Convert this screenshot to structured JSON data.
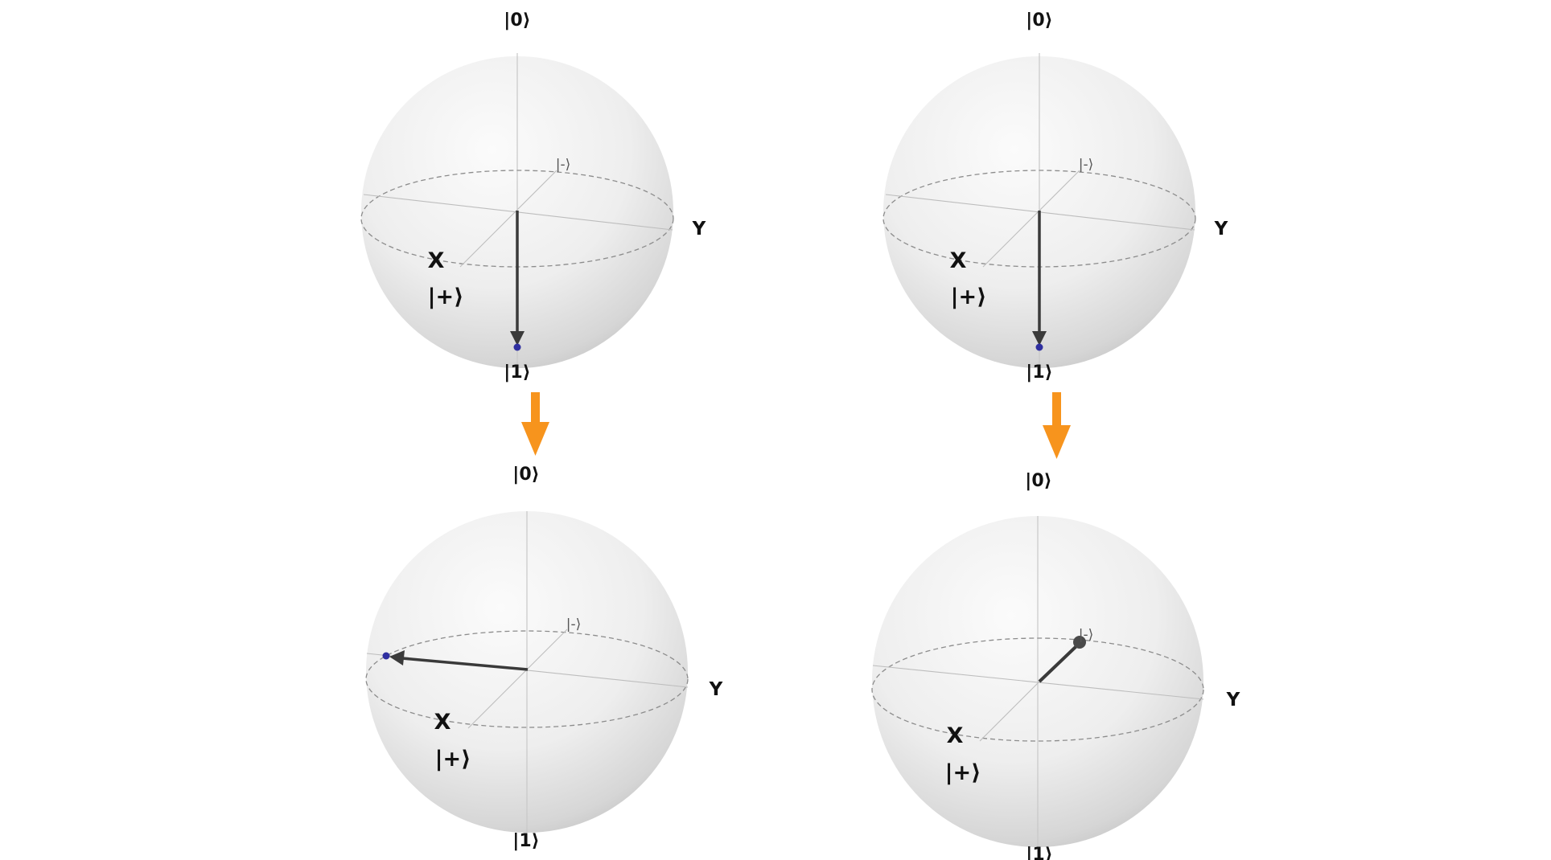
{
  "spheres": [
    {
      "id": "top-left",
      "labels": {
        "zero": "|0⟩",
        "one": "|1⟩",
        "x": "X",
        "y": "Y",
        "plus": "|+⟩",
        "minus": "|-⟩"
      },
      "state_vector": {
        "direction": "|1⟩",
        "point_color": "#2f2fa0",
        "arrow_color": "#3a3a3a"
      }
    },
    {
      "id": "top-right",
      "labels": {
        "zero": "|0⟩",
        "one": "|1⟩",
        "x": "X",
        "y": "Y",
        "plus": "|+⟩",
        "minus": "|-⟩"
      },
      "state_vector": {
        "direction": "|1⟩",
        "point_color": "#2f2fa0",
        "arrow_color": "#3a3a3a"
      }
    },
    {
      "id": "bottom-left",
      "labels": {
        "zero": "|0⟩",
        "one": "|1⟩",
        "x": "X",
        "y": "Y",
        "plus": "|+⟩",
        "minus": "|-⟩"
      },
      "state_vector": {
        "point_color": "#2f2fa0",
        "arrow_color": "#3a3a3a"
      }
    },
    {
      "id": "bottom-right",
      "labels": {
        "zero": "|0⟩",
        "one": "|1⟩",
        "x": "X",
        "y": "Y",
        "plus": "|+⟩",
        "minus": "|-⟩"
      },
      "state_vector": {
        "direction": "|-⟩",
        "point_color": "#4a4a4a",
        "arrow_color": "#3a3a3a"
      }
    }
  ],
  "transition_arrows": [
    {
      "from": "top-left",
      "to": "bottom-left",
      "color": "#f7941d"
    },
    {
      "from": "top-right",
      "to": "bottom-right",
      "color": "#f7941d"
    }
  ]
}
